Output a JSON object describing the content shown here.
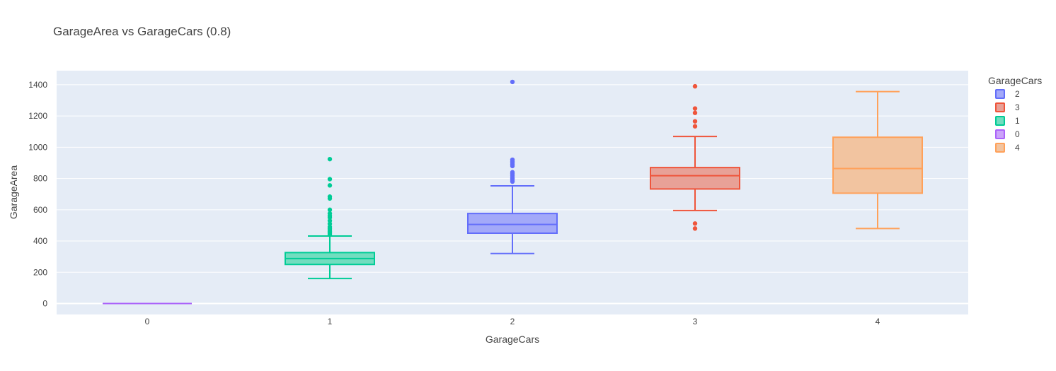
{
  "chart_data": {
    "type": "box",
    "title": "GarageArea vs GarageCars (0.8)",
    "xlabel": "GarageCars",
    "ylabel": "GarageArea",
    "x_categories": [
      "0",
      "1",
      "2",
      "3",
      "4"
    ],
    "ylim": [
      -70,
      1490
    ],
    "y_ticks": [
      0,
      200,
      400,
      600,
      800,
      1000,
      1200,
      1400
    ],
    "grid": true,
    "legend_title": "GarageCars",
    "legend_position": "right",
    "plot_background": "#E5ECF6",
    "series": [
      {
        "name": "2",
        "category": "2",
        "color": "#636EFA",
        "fill": "#A3A9F9",
        "min": 320,
        "q1": 450,
        "median": 506,
        "q3": 576,
        "max": 753,
        "outliers": [
          780,
          790,
          800,
          810,
          820,
          830,
          840,
          880,
          890,
          900,
          910,
          920,
          1418
        ]
      },
      {
        "name": "3",
        "category": "3",
        "color": "#EF553B",
        "fill": "#E8A197",
        "min": 595,
        "q1": 733,
        "median": 818,
        "q3": 870,
        "max": 1069,
        "outliers": [
          480,
          512,
          1134,
          1166,
          1220,
          1248,
          1390
        ]
      },
      {
        "name": "1",
        "category": "1",
        "color": "#00CC96",
        "fill": "#72DDBF",
        "min": 160,
        "q1": 250,
        "median": 288,
        "q3": 326,
        "max": 432,
        "outliers": [
          440,
          450,
          460,
          470,
          480,
          490,
          510,
          530,
          550,
          560,
          576,
          600,
          672,
          684,
          756,
          796,
          924
        ]
      },
      {
        "name": "0",
        "category": "0",
        "color": "#AB63FA",
        "fill": "#CBA3F9",
        "min": 0,
        "q1": 0,
        "median": 0,
        "q3": 0,
        "max": 0,
        "outliers": []
      },
      {
        "name": "4",
        "category": "4",
        "color": "#FFA15A",
        "fill": "#F2C4A0",
        "min": 480,
        "q1": 706,
        "median": 864,
        "q3": 1064,
        "max": 1356,
        "outliers": []
      }
    ]
  }
}
